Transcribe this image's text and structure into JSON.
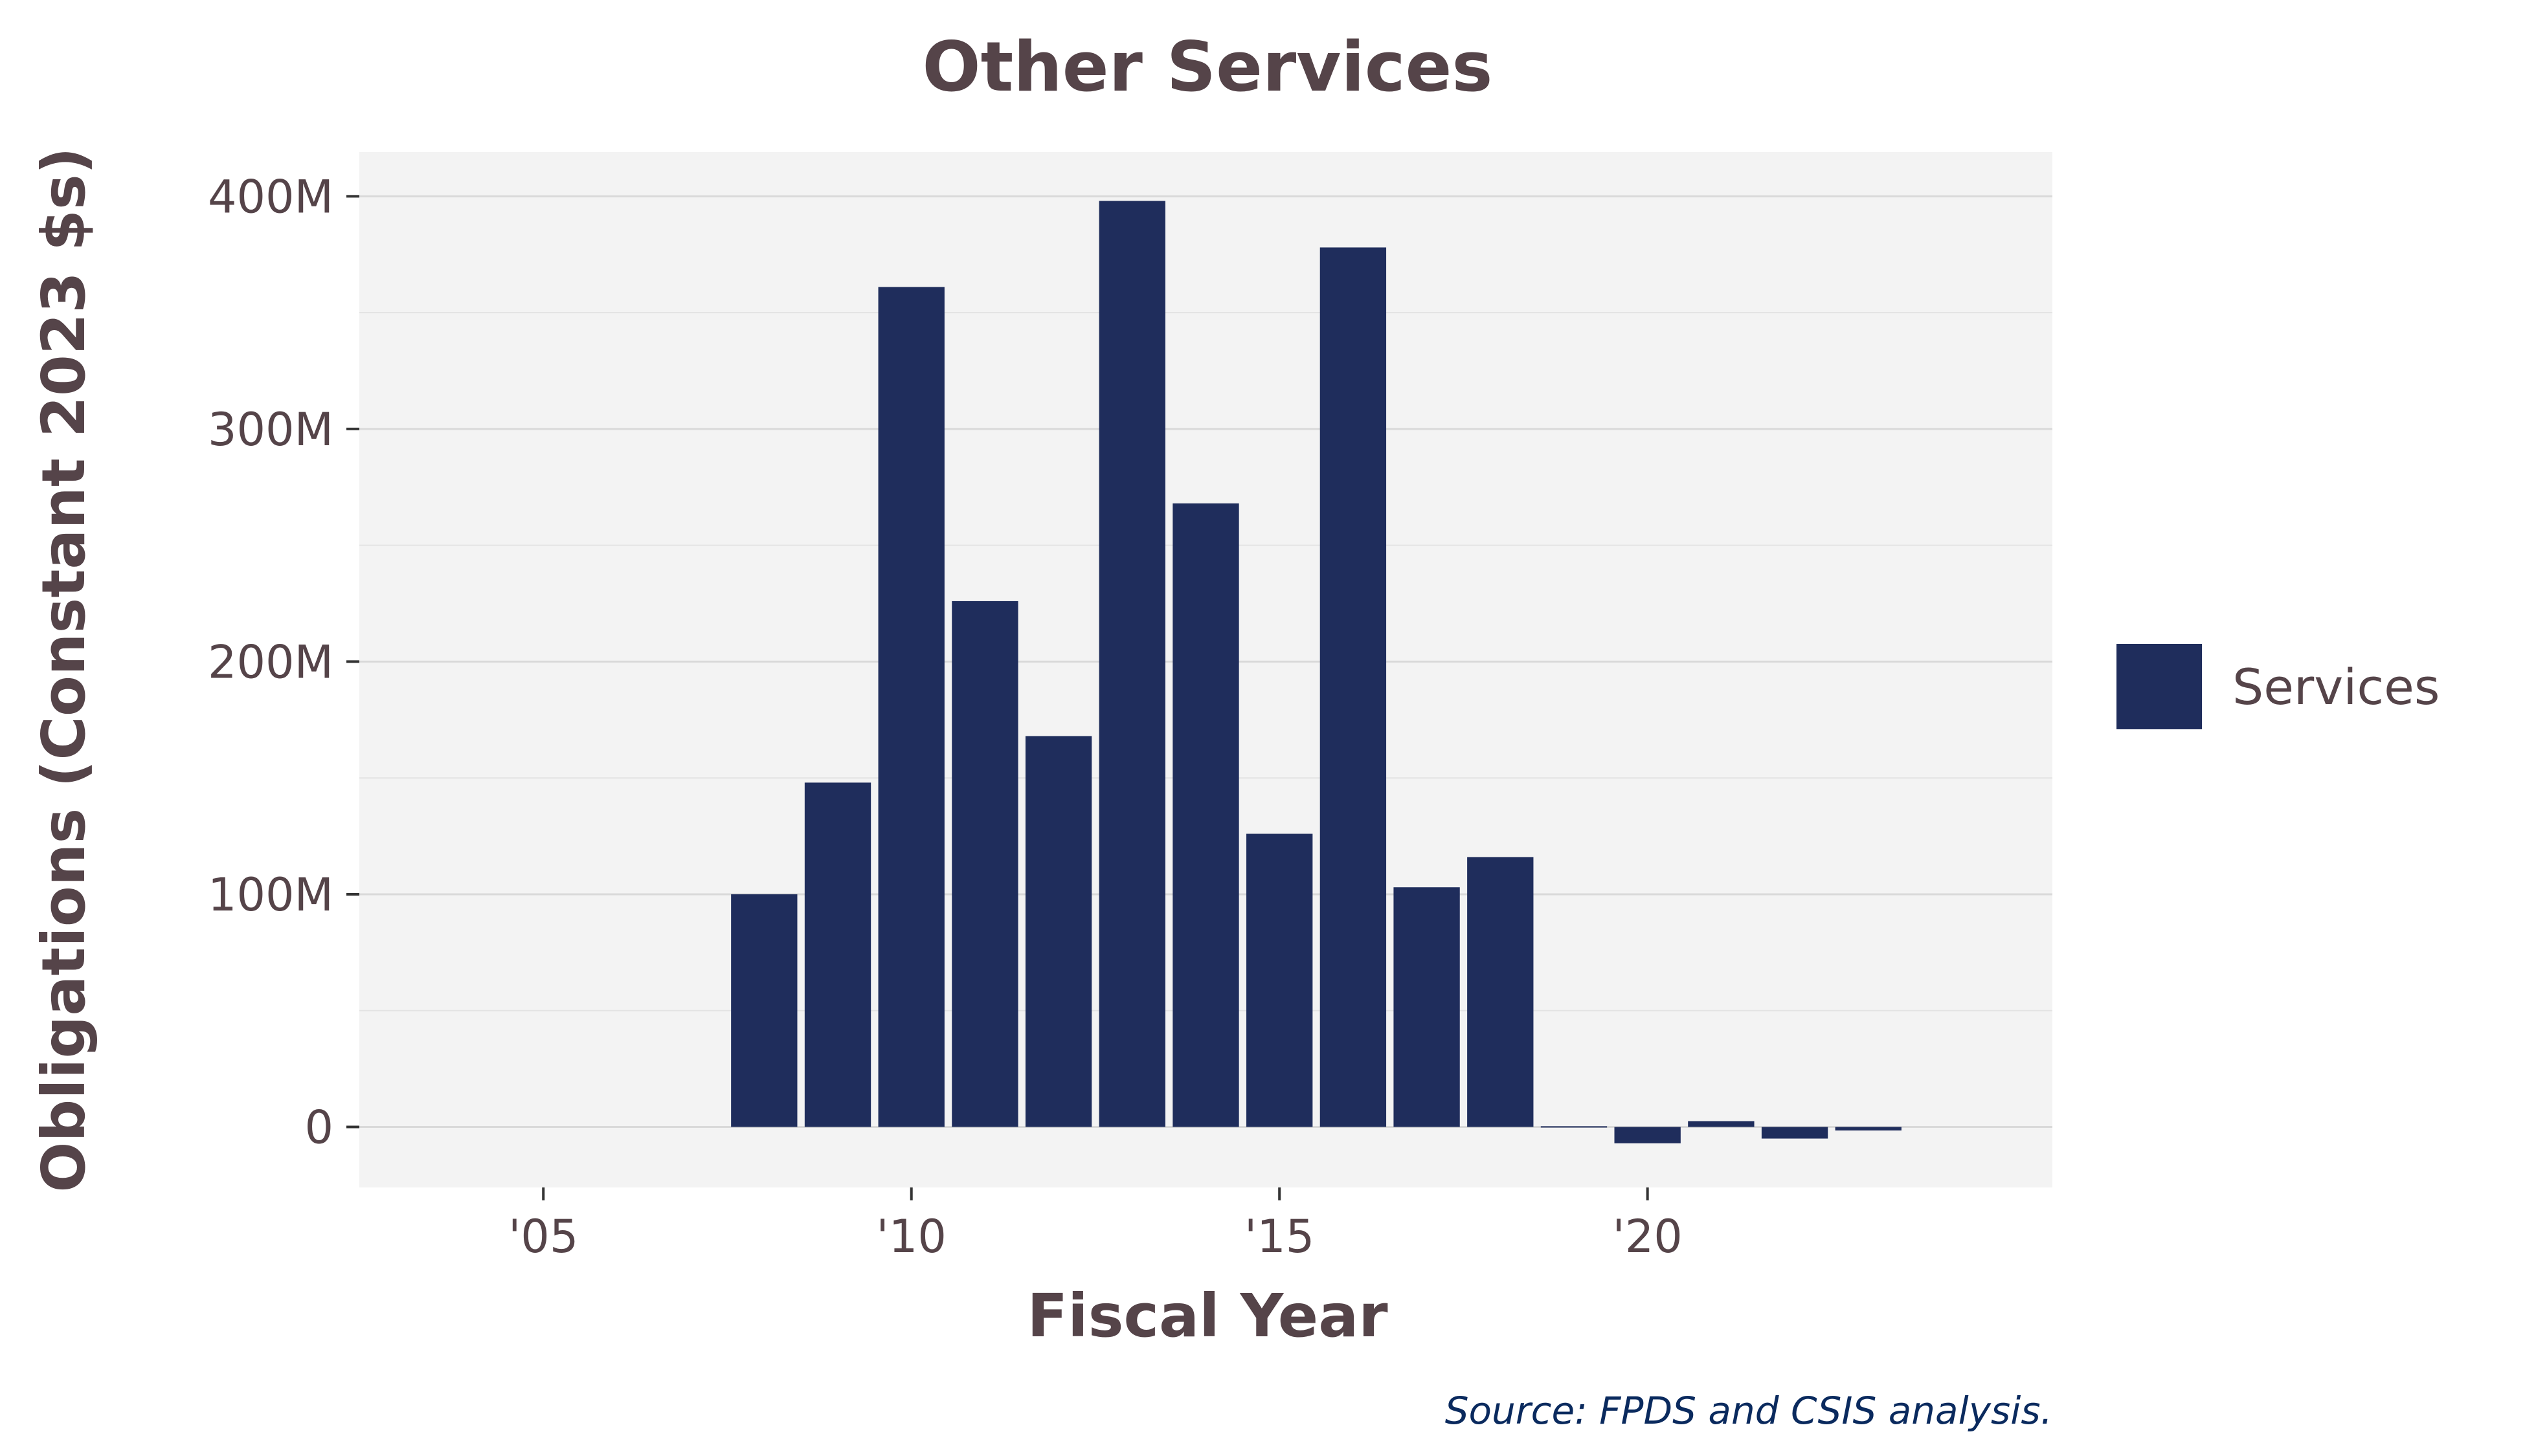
{
  "chart_data": {
    "type": "bar",
    "title": "Other Services",
    "xlabel": "Fiscal Year",
    "ylabel": "Obligations (Constant 2023 $s)",
    "source": "Source: FPDS and CSIS analysis.",
    "x": [
      2008,
      2009,
      2010,
      2011,
      2012,
      2013,
      2014,
      2015,
      2016,
      2017,
      2018,
      2019,
      2020,
      2021,
      2022,
      2023
    ],
    "series": [
      {
        "name": "Services",
        "color": "#1f2d5c",
        "values": [
          100,
          148,
          361,
          226,
          168,
          398,
          268,
          126,
          378,
          103,
          116,
          0.3,
          -7,
          2.5,
          -5,
          -1.5
        ]
      }
    ],
    "value_unit": "millions of constant 2023 dollars",
    "xlim": [
      2002.5,
      2025.5
    ],
    "ylim": [
      -26,
      419
    ],
    "x_ticks": [
      2005,
      2010,
      2015,
      2020
    ],
    "x_tick_labels": [
      "'05",
      "'10",
      "'15",
      "'20"
    ],
    "y_ticks": [
      0,
      100,
      200,
      300,
      400
    ],
    "y_tick_labels": [
      "0",
      "100M",
      "200M",
      "300M",
      "400M"
    ],
    "y_minor_ticks": [
      50,
      150,
      250,
      350
    ],
    "grid": true,
    "legend_position": "right",
    "colors": {
      "panel_bg": "#f3f3f3",
      "grid": "#d9d9d9",
      "text": "#554449",
      "source": "#0a2a5e"
    }
  }
}
